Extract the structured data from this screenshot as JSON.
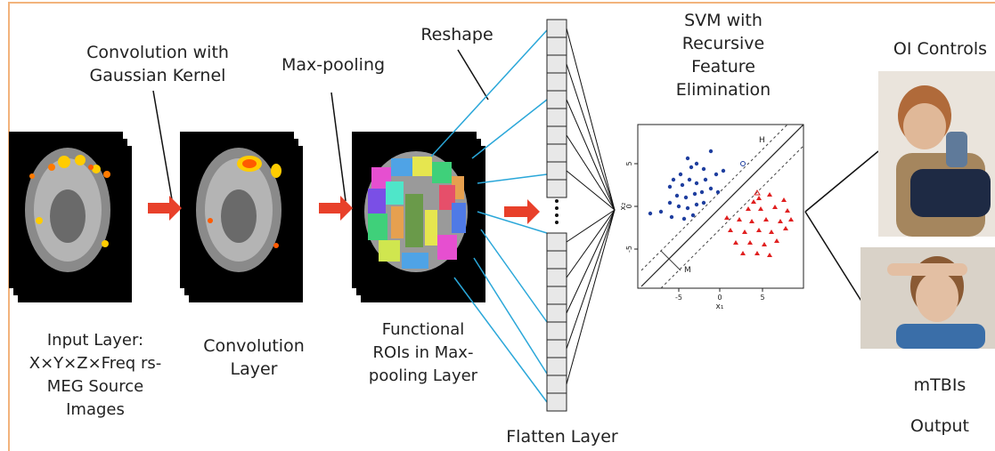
{
  "labels": {
    "conv_gauss": [
      "Convolution with",
      "Gaussian Kernel"
    ],
    "maxpool": "Max-pooling",
    "reshape": "Reshape",
    "svm": [
      "SVM with",
      "Recursive",
      "Feature",
      "Elimination"
    ],
    "oi_controls": "OI Controls",
    "input_layer": [
      "Input Layer:",
      "X×Y×Z×Freq rs-",
      "MEG Source",
      "Images"
    ],
    "conv_layer": [
      "Convolution",
      "Layer"
    ],
    "functional": [
      "Functional",
      "ROIs in Max-",
      "pooling Layer"
    ],
    "flatten": "Flatten Layer",
    "mtbis": "mTBIs",
    "output": "Output"
  },
  "plot": {
    "y_ticks": [
      "5",
      "0",
      "-5"
    ],
    "x_ticks": [
      "-5",
      "0",
      "5"
    ],
    "x_label": "x₁",
    "y_label": "x₂",
    "hyperplane_label": "H",
    "margin_label": "M",
    "colors": {
      "class_a": "#1f3f9f",
      "class_b": "#e02020"
    }
  },
  "colors": {
    "border": "#f2b37c",
    "arrow": "#e8402a",
    "lines_blue": "#2aa7d9"
  }
}
